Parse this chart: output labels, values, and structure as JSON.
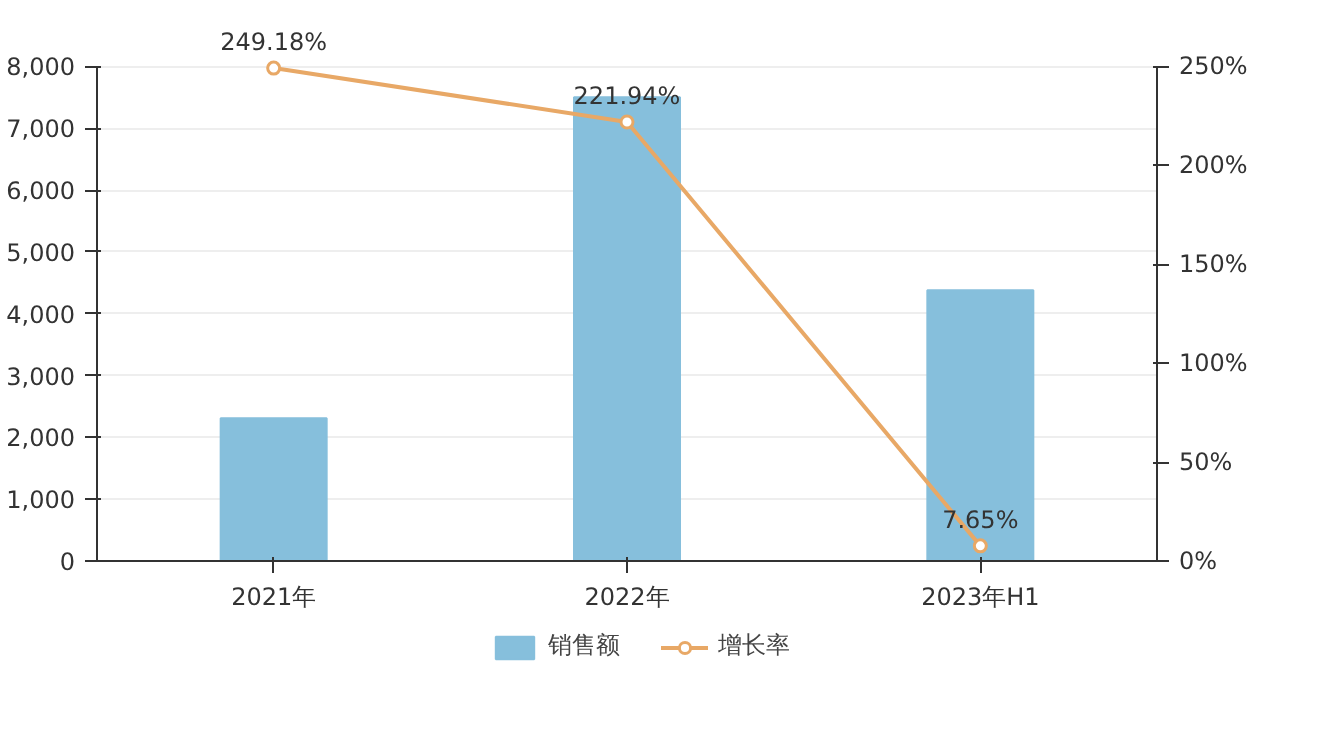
{
  "chart_data": {
    "type": "bar",
    "categories": [
      "2021年",
      "2022年",
      "2023年H1"
    ],
    "series": [
      {
        "name": "销售额",
        "color": "#86bfdc",
        "values": [
          2310,
          7500,
          4380
        ]
      },
      {
        "name": "增长率",
        "type": "line",
        "axis": "y2",
        "color": "#e8a866",
        "marker": "circle",
        "values": [
          249.18,
          221.94,
          7.65
        ],
        "value_labels": [
          "249.18%",
          "221.94%",
          "7.65%"
        ]
      }
    ],
    "ylim": [
      0,
      8000
    ],
    "yticks": [
      0,
      {
        "value": 1000,
        "label": "1,000"
      },
      {
        "value": 2000,
        "label": "2,000"
      },
      {
        "value": 3000,
        "label": "3,000"
      },
      {
        "value": 4000,
        "label": "4,000"
      },
      {
        "value": 5000,
        "label": "5,000"
      },
      {
        "value": 6000,
        "label": "6,000"
      },
      {
        "value": 7000,
        "label": "7,000"
      },
      {
        "value": 8000,
        "label": "8,000"
      }
    ],
    "y2lim": [
      0,
      250
    ],
    "y2ticks": [
      {
        "value": 0,
        "label": "0%"
      },
      {
        "value": 50,
        "label": "50%"
      },
      {
        "value": 100,
        "label": "100%"
      },
      {
        "value": 150,
        "label": "150%"
      },
      {
        "value": 200,
        "label": "200%"
      },
      {
        "value": 250,
        "label": "250%"
      }
    ],
    "grid": "y",
    "legend": "bottom"
  }
}
